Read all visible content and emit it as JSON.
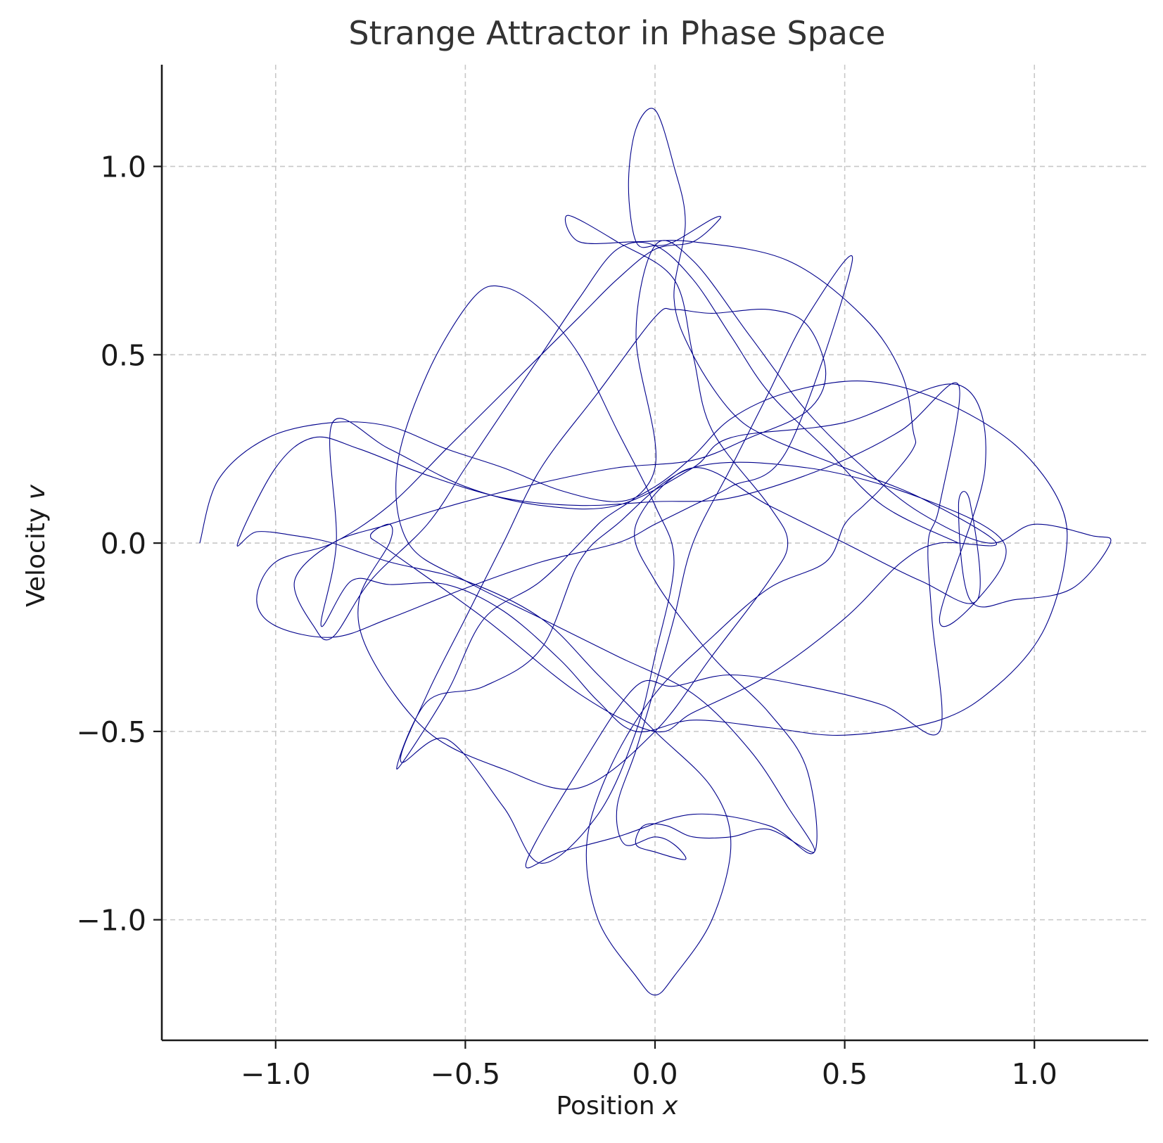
{
  "chart_data": {
    "type": "line",
    "title": "Strange Attractor in Phase Space",
    "xlabel_text": "Position ",
    "xlabel_var": "x",
    "ylabel_text": "Velocity ",
    "ylabel_var": "v",
    "xlim": [
      -1.3,
      1.3
    ],
    "ylim": [
      -1.32,
      1.27
    ],
    "xticks": [
      -1.0,
      -0.5,
      0.0,
      0.5,
      1.0
    ],
    "yticks": [
      -1.0,
      -0.5,
      0.0,
      0.5,
      1.0
    ],
    "xtick_labels": [
      "−1.0",
      "−0.5",
      "0.0",
      "0.5",
      "1.0"
    ],
    "ytick_labels": [
      "−1.0",
      "−0.5",
      "0.0",
      "0.5",
      "1.0"
    ],
    "grid": true,
    "line_color": "#00008b",
    "series": [
      {
        "points": [
          [
            -1.2,
            0.0
          ],
          [
            -1.15,
            0.17
          ],
          [
            -1.02,
            0.28
          ],
          [
            -0.85,
            0.32
          ],
          [
            -0.7,
            0.31
          ],
          [
            -0.55,
            0.25
          ],
          [
            -0.4,
            0.2
          ],
          [
            -0.25,
            0.14
          ],
          [
            -0.1,
            0.11
          ],
          [
            0.0,
            0.15
          ],
          [
            0.1,
            0.23
          ],
          [
            0.2,
            0.33
          ],
          [
            0.35,
            0.4
          ],
          [
            0.55,
            0.43
          ],
          [
            0.75,
            0.38
          ],
          [
            0.95,
            0.26
          ],
          [
            1.07,
            0.1
          ],
          [
            1.08,
            -0.05
          ],
          [
            1.02,
            -0.24
          ],
          [
            0.9,
            -0.38
          ],
          [
            0.75,
            -0.47
          ],
          [
            0.5,
            -0.51
          ],
          [
            0.3,
            -0.49
          ],
          [
            0.1,
            -0.47
          ],
          [
            -0.05,
            -0.5
          ],
          [
            -0.15,
            -0.42
          ],
          [
            -0.25,
            -0.31
          ],
          [
            -0.4,
            -0.18
          ],
          [
            -0.55,
            -0.11
          ],
          [
            -0.7,
            -0.11
          ],
          [
            -0.8,
            -0.1
          ],
          [
            -0.88,
            -0.22
          ],
          [
            -0.84,
            0.0
          ],
          [
            -0.85,
            0.32
          ],
          [
            -0.7,
            0.25
          ],
          [
            -0.5,
            0.15
          ],
          [
            -0.3,
            0.1
          ],
          [
            -0.1,
            0.1
          ],
          [
            0.1,
            0.2
          ],
          [
            0.2,
            0.28
          ],
          [
            0.5,
            0.32
          ],
          [
            0.8,
            0.42
          ],
          [
            0.87,
            0.2
          ],
          [
            0.75,
            -0.2
          ],
          [
            0.85,
            -0.15
          ],
          [
            0.92,
            0.0
          ],
          [
            0.7,
            0.12
          ],
          [
            0.4,
            0.2
          ],
          [
            0.1,
            0.2
          ],
          [
            -0.1,
            0.05
          ],
          [
            -0.2,
            -0.05
          ],
          [
            -0.3,
            -0.28
          ],
          [
            -0.45,
            -0.38
          ],
          [
            -0.6,
            -0.42
          ],
          [
            -0.68,
            -0.6
          ],
          [
            -0.55,
            -0.4
          ],
          [
            -0.45,
            -0.2
          ],
          [
            -0.3,
            -0.1
          ],
          [
            -0.15,
            0.05
          ],
          [
            0.0,
            0.2
          ],
          [
            -0.05,
            0.55
          ],
          [
            0.0,
            0.79
          ],
          [
            0.1,
            0.75
          ],
          [
            0.25,
            0.55
          ],
          [
            0.4,
            0.35
          ],
          [
            0.55,
            0.2
          ],
          [
            0.7,
            0.08
          ],
          [
            0.88,
            0.0
          ],
          [
            1.0,
            0.05
          ],
          [
            1.15,
            0.02
          ],
          [
            1.2,
            0.0
          ],
          [
            1.1,
            -0.12
          ],
          [
            0.95,
            -0.15
          ],
          [
            0.83,
            -0.15
          ],
          [
            0.8,
            0.1
          ],
          [
            0.83,
            0.11
          ],
          [
            0.85,
            -0.15
          ],
          [
            0.7,
            -0.1
          ],
          [
            0.5,
            0.0
          ],
          [
            0.3,
            0.1
          ],
          [
            0.1,
            0.2
          ],
          [
            -0.05,
            0.05
          ],
          [
            0.0,
            -0.1
          ],
          [
            0.15,
            -0.3
          ],
          [
            0.3,
            -0.45
          ],
          [
            0.4,
            -0.6
          ],
          [
            0.42,
            -0.82
          ],
          [
            0.3,
            -0.75
          ],
          [
            0.1,
            -0.72
          ],
          [
            -0.1,
            -0.78
          ],
          [
            -0.25,
            -0.82
          ],
          [
            -0.34,
            -0.85
          ],
          [
            -0.2,
            -0.6
          ],
          [
            -0.05,
            -0.38
          ],
          [
            0.05,
            -0.38
          ],
          [
            0.2,
            -0.35
          ],
          [
            0.4,
            -0.38
          ],
          [
            0.6,
            -0.43
          ],
          [
            0.75,
            -0.5
          ],
          [
            0.73,
            -0.2
          ],
          [
            0.72,
            0.0
          ],
          [
            0.75,
            0.1
          ],
          [
            0.8,
            0.42
          ],
          [
            0.65,
            0.3
          ],
          [
            0.45,
            0.2
          ],
          [
            0.2,
            0.12
          ],
          [
            0.0,
            0.11
          ],
          [
            -0.2,
            0.1
          ],
          [
            -0.4,
            0.12
          ],
          [
            -0.6,
            0.18
          ],
          [
            -0.78,
            0.25
          ],
          [
            -0.9,
            0.28
          ],
          [
            -1.0,
            0.2
          ],
          [
            -1.1,
            0.0
          ],
          [
            -1.05,
            0.03
          ],
          [
            -0.95,
            0.02
          ],
          [
            -0.85,
            0.0
          ],
          [
            -0.7,
            -0.05
          ],
          [
            -0.5,
            -0.1
          ],
          [
            -0.3,
            -0.2
          ],
          [
            -0.15,
            -0.35
          ],
          [
            0.0,
            -0.5
          ],
          [
            0.15,
            -0.65
          ],
          [
            0.2,
            -0.8
          ],
          [
            0.15,
            -1.0
          ],
          [
            0.05,
            -1.15
          ],
          [
            0.0,
            -1.2
          ],
          [
            -0.05,
            -1.15
          ],
          [
            -0.15,
            -1.0
          ],
          [
            -0.18,
            -0.8
          ],
          [
            -0.12,
            -0.6
          ],
          [
            0.0,
            -0.4
          ],
          [
            0.15,
            -0.25
          ],
          [
            0.3,
            -0.12
          ],
          [
            0.45,
            -0.05
          ],
          [
            0.5,
            0.05
          ],
          [
            0.55,
            0.1
          ],
          [
            0.6,
            0.15
          ],
          [
            0.68,
            0.25
          ],
          [
            0.68,
            0.3
          ],
          [
            0.65,
            0.45
          ],
          [
            0.55,
            0.6
          ],
          [
            0.35,
            0.75
          ],
          [
            0.1,
            0.8
          ],
          [
            -0.05,
            0.8
          ],
          [
            -0.2,
            0.8
          ],
          [
            -0.23,
            0.87
          ],
          [
            -0.1,
            0.8
          ],
          [
            0.05,
            0.7
          ],
          [
            0.1,
            0.5
          ],
          [
            0.15,
            0.3
          ],
          [
            0.3,
            0.1
          ],
          [
            0.35,
            0.0
          ],
          [
            0.3,
            -0.1
          ],
          [
            0.15,
            -0.3
          ],
          [
            0.0,
            -0.5
          ],
          [
            -0.2,
            -0.65
          ],
          [
            -0.4,
            -0.6
          ],
          [
            -0.6,
            -0.5
          ],
          [
            -0.75,
            -0.3
          ],
          [
            -0.78,
            -0.15
          ],
          [
            -0.7,
            0.0
          ],
          [
            -0.7,
            0.05
          ],
          [
            -0.75,
            0.02
          ],
          [
            -0.7,
            -0.02
          ],
          [
            -0.45,
            -0.2
          ],
          [
            -0.2,
            -0.4
          ],
          [
            0.0,
            -0.5
          ],
          [
            0.1,
            -0.45
          ],
          [
            0.3,
            -0.35
          ],
          [
            0.5,
            -0.2
          ],
          [
            0.65,
            -0.05
          ],
          [
            0.75,
            0.0
          ],
          [
            0.9,
            0.0
          ],
          [
            0.7,
            0.12
          ],
          [
            0.5,
            0.2
          ],
          [
            0.3,
            0.28
          ],
          [
            0.2,
            0.35
          ],
          [
            0.1,
            0.5
          ],
          [
            0.05,
            0.65
          ],
          [
            0.08,
            0.85
          ],
          [
            0.05,
            1.0
          ],
          [
            0.0,
            1.15
          ],
          [
            -0.05,
            1.1
          ],
          [
            -0.07,
            0.95
          ],
          [
            -0.05,
            0.8
          ],
          [
            0.0,
            0.79
          ],
          [
            0.05,
            0.8
          ],
          [
            0.15,
            0.86
          ],
          [
            0.17,
            0.86
          ],
          [
            0.1,
            0.8
          ],
          [
            0.0,
            0.78
          ],
          [
            -0.1,
            0.7
          ],
          [
            -0.2,
            0.6
          ],
          [
            -0.4,
            0.4
          ],
          [
            -0.55,
            0.25
          ],
          [
            -0.7,
            0.1
          ],
          [
            -0.85,
            0.0
          ],
          [
            -1.0,
            -0.05
          ],
          [
            -1.05,
            -0.15
          ],
          [
            -1.0,
            -0.22
          ],
          [
            -0.85,
            -0.25
          ],
          [
            -0.7,
            -0.2
          ],
          [
            -0.5,
            -0.12
          ],
          [
            -0.3,
            -0.05
          ],
          [
            -0.1,
            0.0
          ],
          [
            0.0,
            0.05
          ],
          [
            0.1,
            0.1
          ],
          [
            0.2,
            0.15
          ],
          [
            0.35,
            0.25
          ],
          [
            0.52,
            0.75
          ],
          [
            0.4,
            0.6
          ],
          [
            0.3,
            0.4
          ],
          [
            0.2,
            0.2
          ],
          [
            0.1,
            0.0
          ],
          [
            0.05,
            -0.2
          ],
          [
            0.0,
            -0.38
          ],
          [
            -0.05,
            -0.55
          ],
          [
            -0.1,
            -0.7
          ],
          [
            -0.08,
            -0.8
          ],
          [
            0.0,
            -0.78
          ],
          [
            0.05,
            -0.8
          ],
          [
            0.08,
            -0.84
          ],
          [
            0.0,
            -0.82
          ],
          [
            -0.05,
            -0.8
          ],
          [
            -0.03,
            -0.75
          ],
          [
            0.03,
            -0.75
          ],
          [
            0.1,
            -0.78
          ],
          [
            0.2,
            -0.78
          ],
          [
            0.3,
            -0.76
          ],
          [
            0.42,
            -0.82
          ],
          [
            0.35,
            -0.7
          ],
          [
            0.25,
            -0.55
          ],
          [
            0.1,
            -0.4
          ],
          [
            -0.1,
            -0.3
          ],
          [
            -0.3,
            -0.2
          ],
          [
            -0.5,
            -0.1
          ],
          [
            -0.65,
            0.0
          ],
          [
            -0.68,
            0.2
          ],
          [
            -0.6,
            0.45
          ],
          [
            -0.48,
            0.65
          ],
          [
            -0.4,
            0.68
          ],
          [
            -0.3,
            0.62
          ],
          [
            -0.2,
            0.5
          ],
          [
            -0.1,
            0.3
          ],
          [
            0.0,
            0.1
          ],
          [
            0.05,
            -0.05
          ],
          [
            0.0,
            -0.3
          ],
          [
            -0.05,
            -0.5
          ],
          [
            -0.15,
            -0.72
          ],
          [
            -0.3,
            -0.85
          ],
          [
            -0.4,
            -0.7
          ],
          [
            -0.55,
            -0.52
          ],
          [
            -0.67,
            -0.58
          ],
          [
            -0.6,
            -0.4
          ],
          [
            -0.5,
            -0.2
          ],
          [
            -0.4,
            0.0
          ],
          [
            -0.3,
            0.2
          ],
          [
            -0.15,
            0.4
          ],
          [
            0.0,
            0.6
          ],
          [
            0.05,
            0.62
          ],
          [
            0.15,
            0.61
          ],
          [
            0.3,
            0.62
          ],
          [
            0.4,
            0.58
          ],
          [
            0.45,
            0.45
          ],
          [
            0.4,
            0.35
          ],
          [
            0.25,
            0.28
          ],
          [
            0.1,
            0.22
          ],
          [
            -0.1,
            0.2
          ],
          [
            -0.3,
            0.16
          ],
          [
            -0.5,
            0.11
          ],
          [
            -0.7,
            0.05
          ],
          [
            -0.85,
            0.0
          ],
          [
            -0.95,
            -0.1
          ],
          [
            -0.9,
            -0.22
          ],
          [
            -0.85,
            -0.25
          ],
          [
            -0.75,
            -0.1
          ],
          [
            -0.6,
            0.05
          ],
          [
            -0.5,
            0.2
          ],
          [
            -0.4,
            0.35
          ],
          [
            -0.3,
            0.5
          ],
          [
            -0.2,
            0.65
          ],
          [
            -0.1,
            0.78
          ],
          [
            0.0,
            0.79
          ],
          [
            0.1,
            0.7
          ],
          [
            0.2,
            0.55
          ],
          [
            0.3,
            0.4
          ],
          [
            0.45,
            0.25
          ],
          [
            0.6,
            0.1
          ],
          [
            0.8,
            0.0
          ]
        ]
      }
    ]
  }
}
